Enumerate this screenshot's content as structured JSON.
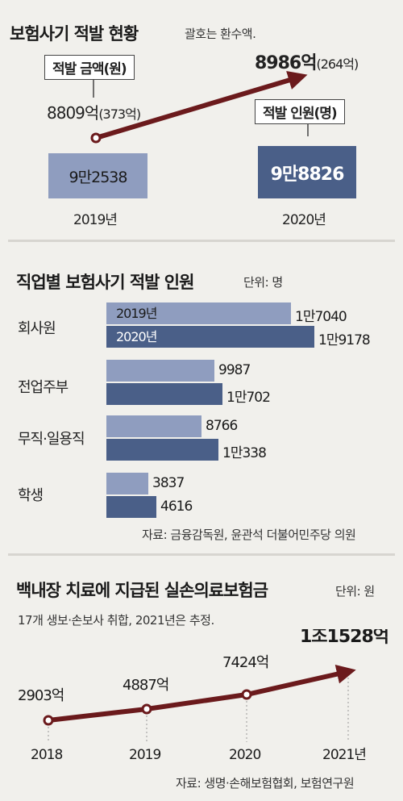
{
  "colors": {
    "light": "#8f9dbf",
    "dark": "#4a5f88",
    "arrow": "#6b1a1c",
    "divider": "#d7d5d0"
  },
  "chart_data": [
    {
      "type": "line",
      "title": "보험사기 적발 현황",
      "subtitle": "괄호는 환수액.",
      "callout_amount": "적발 금액(원)",
      "callout_people": "적발 인원(명)",
      "x": [
        "2019년",
        "2020년"
      ],
      "amount_labels": [
        "8809억",
        "8986억"
      ],
      "recovery_labels": [
        "(373억)",
        "(264억)"
      ],
      "people_labels": [
        "9만2538",
        "9만8826"
      ],
      "series": [
        {
          "name": "적발 금액",
          "values": [
            8809,
            8986
          ]
        },
        {
          "name": "적발 인원",
          "values": [
            92538,
            98826
          ]
        }
      ]
    },
    {
      "type": "bar",
      "title": "직업별 보험사기 적발 인원",
      "unit": "단위: 명",
      "legend_2019": "2019년",
      "legend_2020": "2020년",
      "categories": [
        "회사원",
        "전업주부",
        "무직·일용직",
        "학생"
      ],
      "series": [
        {
          "name": "2019년",
          "values": [
            17040,
            9987,
            8766,
            3837
          ],
          "labels": [
            "1만7040",
            "9987",
            "8766",
            "3837"
          ]
        },
        {
          "name": "2020년",
          "values": [
            19178,
            10702,
            10338,
            4616
          ],
          "labels": [
            "1만9178",
            "1만702",
            "1만338",
            "4616"
          ]
        }
      ],
      "source": "자료: 금융감독원, 윤관석 더불어민주당 의원"
    },
    {
      "type": "line",
      "title": "백내장 치료에 지급된 실손의료보험금",
      "unit": "단위: 원",
      "subtitle": "17개 생보·손보사 취합, 2021년은 추정.",
      "x": [
        "2018",
        "2019",
        "2020",
        "2021년"
      ],
      "values": [
        2903,
        4887,
        7424,
        11528
      ],
      "value_labels": [
        "2903억",
        "4887억",
        "7424억",
        "1조1528억"
      ],
      "source": "자료: 생명·손해보험협회, 보험연구원"
    }
  ]
}
